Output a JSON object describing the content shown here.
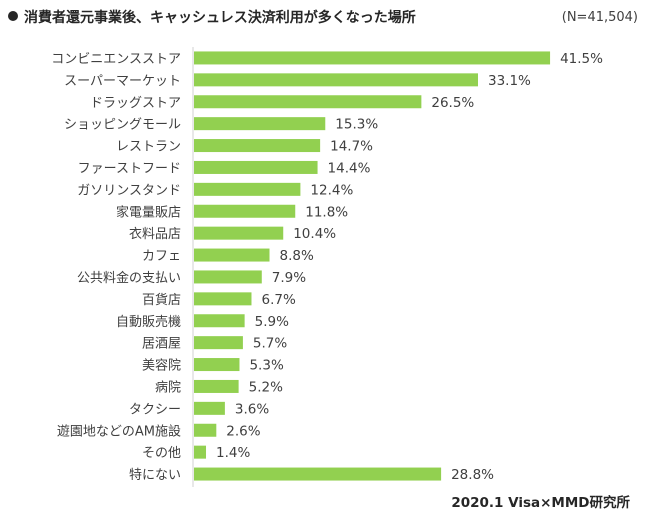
{
  "header": {
    "title": "消費者還元事業後、キャッシュレス決済利用が多くなった場所",
    "sample_size": "(N=41,504)"
  },
  "footer": {
    "source": "2020.1 Visa×MMD研究所"
  },
  "chart_data": {
    "type": "bar",
    "orientation": "horizontal",
    "title": "消費者還元事業後、キャッシュレス決済利用が多くなった場所",
    "subtitle": "(N=41,504)",
    "xlabel": "",
    "ylabel": "",
    "unit": "%",
    "xlim": [
      0,
      45
    ],
    "grid": false,
    "legend": "none",
    "bar_color": "#92D050",
    "categories": [
      "コンビニエンスストア",
      "スーパーマーケット",
      "ドラッグストア",
      "ショッピングモール",
      "レストラン",
      "ファーストフード",
      "ガソリンスタンド",
      "家電量販店",
      "衣料品店",
      "カフェ",
      "公共料金の支払い",
      "百貨店",
      "自動販売機",
      "居酒屋",
      "美容院",
      "病院",
      "タクシー",
      "遊園地などのAM施設",
      "その他",
      "特にない"
    ],
    "values": [
      41.5,
      33.1,
      26.5,
      15.3,
      14.7,
      14.4,
      12.4,
      11.8,
      10.4,
      8.8,
      7.9,
      6.7,
      5.9,
      5.7,
      5.3,
      5.2,
      3.6,
      2.6,
      1.4,
      28.8
    ],
    "labels": [
      "41.5%",
      "33.1%",
      "26.5%",
      "15.3%",
      "14.7%",
      "14.4%",
      "12.4%",
      "11.8%",
      "10.4%",
      "8.8%",
      "7.9%",
      "6.7%",
      "5.9%",
      "5.7%",
      "5.3%",
      "5.2%",
      "3.6%",
      "2.6%",
      "1.4%",
      "28.8%"
    ],
    "annotation": "2020.1 Visa×MMD研究所"
  }
}
